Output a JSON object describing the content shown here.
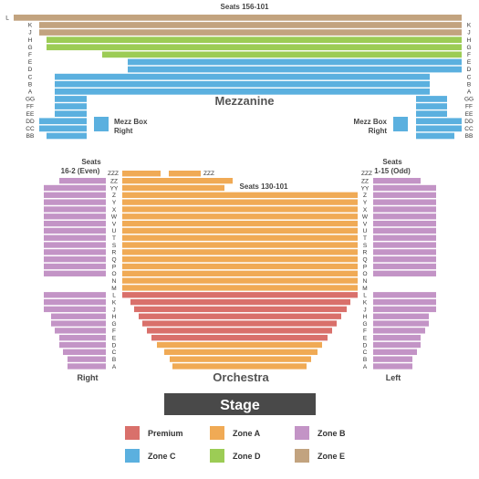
{
  "colors": {
    "premium": "#d9706b",
    "zone_a": "#f0aa55",
    "zone_b": "#c394c6",
    "zone_c": "#5bb0df",
    "zone_d": "#9ccc55",
    "zone_e": "#c2a37f",
    "stage": "#494949"
  },
  "mezzanine": {
    "title": "Mezzanine",
    "seats_label": "Seats 156-101",
    "box_left_line1": "Mezz Box",
    "box_left_line2": "Right",
    "box_right_line1": "Mezz Box",
    "box_right_line2": "Right",
    "rows": [
      "L",
      "K",
      "J",
      "H",
      "G",
      "F",
      "E",
      "D",
      "C",
      "B",
      "A",
      "GG",
      "FF",
      "EE",
      "DD",
      "CC",
      "BB"
    ]
  },
  "orchestra": {
    "title": "Orchestra",
    "center_seats_label": "Seats 130-101",
    "right_section_label": "Right",
    "left_section_label": "Left",
    "right_seats_line1": "Seats",
    "right_seats_line2": "16-2 (Even)",
    "left_seats_line1": "Seats",
    "left_seats_line2": "1-15 (Odd)",
    "zzz_label": "ZZZ",
    "rows": [
      "ZZ",
      "YY",
      "Z",
      "Y",
      "X",
      "W",
      "V",
      "U",
      "T",
      "S",
      "R",
      "Q",
      "P",
      "O",
      "N",
      "M",
      "L",
      "K",
      "J",
      "H",
      "G",
      "F",
      "E",
      "D",
      "C",
      "B",
      "A"
    ]
  },
  "stage": {
    "label": "Stage"
  },
  "legend": [
    {
      "label": "Premium",
      "color": "#d9706b"
    },
    {
      "label": "Zone A",
      "color": "#f0aa55"
    },
    {
      "label": "Zone B",
      "color": "#c394c6"
    },
    {
      "label": "Zone C",
      "color": "#5bb0df"
    },
    {
      "label": "Zone D",
      "color": "#9ccc55"
    },
    {
      "label": "Zone E",
      "color": "#c2a37f"
    }
  ]
}
